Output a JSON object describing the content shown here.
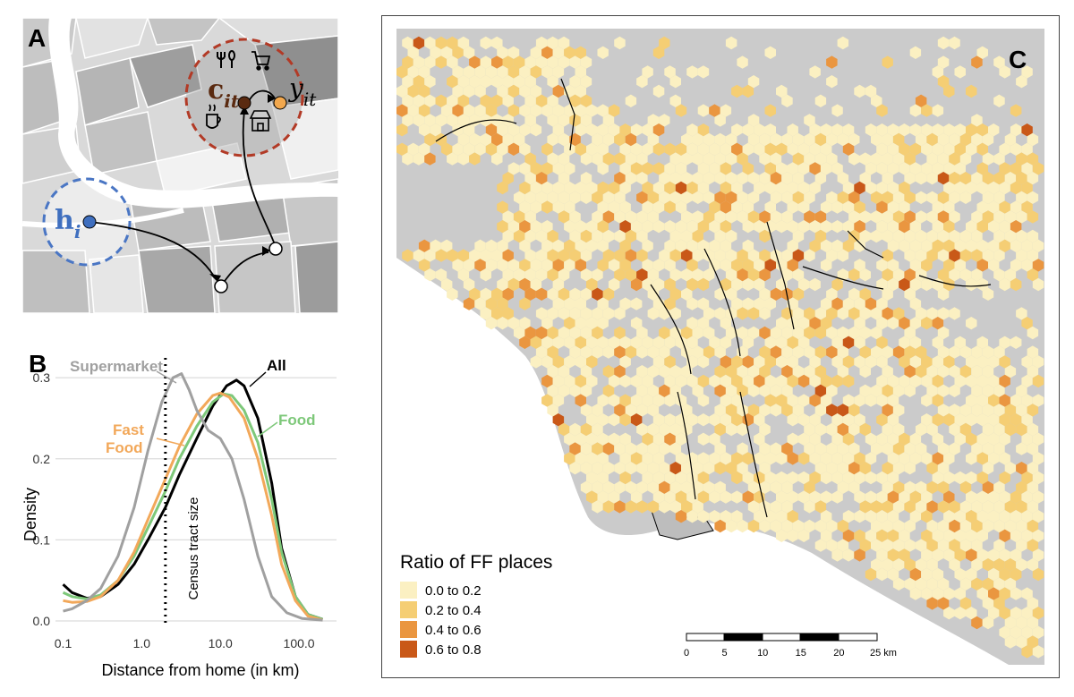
{
  "panel_a": {
    "label": "A",
    "home_symbol": "h",
    "home_subscript": "i",
    "choice_symbol": "c",
    "choice_subscript": "it",
    "outcome_symbol": "y",
    "outcome_subscript": "it",
    "icons": [
      "fork-knife-icon",
      "shopping-cart-icon",
      "coffee-cup-icon",
      "store-icon"
    ],
    "colors": {
      "home": "#3f6fbf",
      "choice": "#5a2a10",
      "outcome": "#f2a84e",
      "choice_ring": "#b23a26"
    }
  },
  "panel_b": {
    "label": "B",
    "annotations": {
      "supermarket": "Supermarket",
      "all": "All",
      "fast_food_line1": "Fast",
      "fast_food_line2": "Food",
      "food": "Food",
      "census": "Census tract size"
    }
  },
  "chart_data": {
    "type": "line",
    "xlabel": "Distance from home (in km)",
    "ylabel": "Density",
    "x_scale": "log",
    "xlim": [
      0.08,
      300
    ],
    "ylim": [
      0,
      0.32
    ],
    "x_ticks": [
      "0.1",
      "1.0",
      "10.0",
      "100.0"
    ],
    "y_ticks": [
      "0.0",
      "0.1",
      "0.2",
      "0.3"
    ],
    "vline_x": 2.0,
    "series": [
      {
        "name": "All",
        "color": "#000000",
        "x": [
          0.1,
          0.13,
          0.2,
          0.3,
          0.5,
          0.8,
          1.2,
          2,
          3,
          5,
          8,
          12,
          16,
          20,
          30,
          45,
          60,
          90,
          130,
          200
        ],
        "y": [
          0.045,
          0.035,
          0.028,
          0.03,
          0.045,
          0.07,
          0.1,
          0.14,
          0.18,
          0.225,
          0.265,
          0.29,
          0.297,
          0.29,
          0.25,
          0.17,
          0.09,
          0.03,
          0.008,
          0.002
        ]
      },
      {
        "name": "Food",
        "color": "#7ec87a",
        "x": [
          0.1,
          0.13,
          0.2,
          0.3,
          0.5,
          0.8,
          1.2,
          2,
          3,
          5,
          8,
          11,
          14,
          20,
          30,
          45,
          60,
          90,
          130,
          200
        ],
        "y": [
          0.035,
          0.03,
          0.027,
          0.032,
          0.05,
          0.08,
          0.115,
          0.16,
          0.2,
          0.24,
          0.27,
          0.28,
          0.278,
          0.26,
          0.22,
          0.15,
          0.085,
          0.03,
          0.008,
          0.002
        ]
      },
      {
        "name": "Fast Food",
        "color": "#f2a85a",
        "x": [
          0.1,
          0.13,
          0.2,
          0.3,
          0.5,
          0.8,
          1.2,
          2,
          3,
          5,
          8,
          10,
          13,
          20,
          30,
          45,
          60,
          90,
          130,
          200
        ],
        "y": [
          0.025,
          0.023,
          0.024,
          0.03,
          0.05,
          0.085,
          0.125,
          0.175,
          0.215,
          0.255,
          0.278,
          0.281,
          0.276,
          0.25,
          0.2,
          0.13,
          0.07,
          0.025,
          0.006,
          0.001
        ]
      },
      {
        "name": "Supermarket",
        "color": "#a0a0a0",
        "x": [
          0.1,
          0.13,
          0.2,
          0.3,
          0.5,
          0.8,
          1.2,
          1.8,
          2.5,
          3.2,
          4,
          5,
          7,
          10,
          14,
          20,
          30,
          45,
          70,
          110,
          200
        ],
        "y": [
          0.012,
          0.015,
          0.025,
          0.04,
          0.08,
          0.14,
          0.21,
          0.27,
          0.3,
          0.305,
          0.285,
          0.26,
          0.235,
          0.225,
          0.2,
          0.15,
          0.08,
          0.03,
          0.01,
          0.003,
          0.001
        ]
      }
    ]
  },
  "panel_c": {
    "label": "C",
    "legend_title": "Ratio of FF places",
    "legend_items": [
      {
        "label": "0.0 to 0.2",
        "color": "#fbf0c2"
      },
      {
        "label": "0.2 to 0.4",
        "color": "#f5ce74"
      },
      {
        "label": "0.4 to 0.6",
        "color": "#ea9640"
      },
      {
        "label": "0.6 to 0.8",
        "color": "#c95818"
      }
    ],
    "scalebar_ticks": [
      "0",
      "5",
      "10",
      "15",
      "20",
      "25 km"
    ],
    "land_color": "#cbcbcb",
    "ocean_color": "#ffffff"
  }
}
